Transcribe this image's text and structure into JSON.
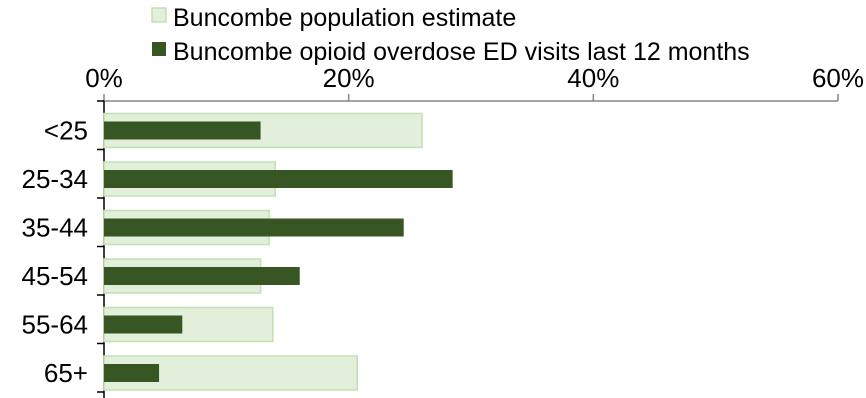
{
  "chart_data": {
    "type": "bar",
    "orientation": "horizontal",
    "title": "",
    "xlabel": "",
    "ylabel": "",
    "categories": [
      "<25",
      "25-34",
      "35-44",
      "45-54",
      "55-64",
      "65+"
    ],
    "series": [
      {
        "name": "Buncombe population estimate",
        "color": "#e2efda",
        "border": "#c5e0b4",
        "values": [
          26,
          14,
          13.5,
          12.8,
          13.8,
          20.7
        ]
      },
      {
        "name": "Buncombe opioid overdose ED visits last 12 months",
        "color": "#375623",
        "values": [
          12.8,
          28.5,
          24.5,
          16.0,
          6.4,
          4.5
        ]
      }
    ],
    "xlim": [
      0,
      60
    ],
    "xticks": [
      "0%",
      "20%",
      "40%",
      "60%"
    ],
    "xtick_values": [
      0,
      20,
      40,
      60
    ],
    "axis_position": "top",
    "legend_position": "top"
  }
}
